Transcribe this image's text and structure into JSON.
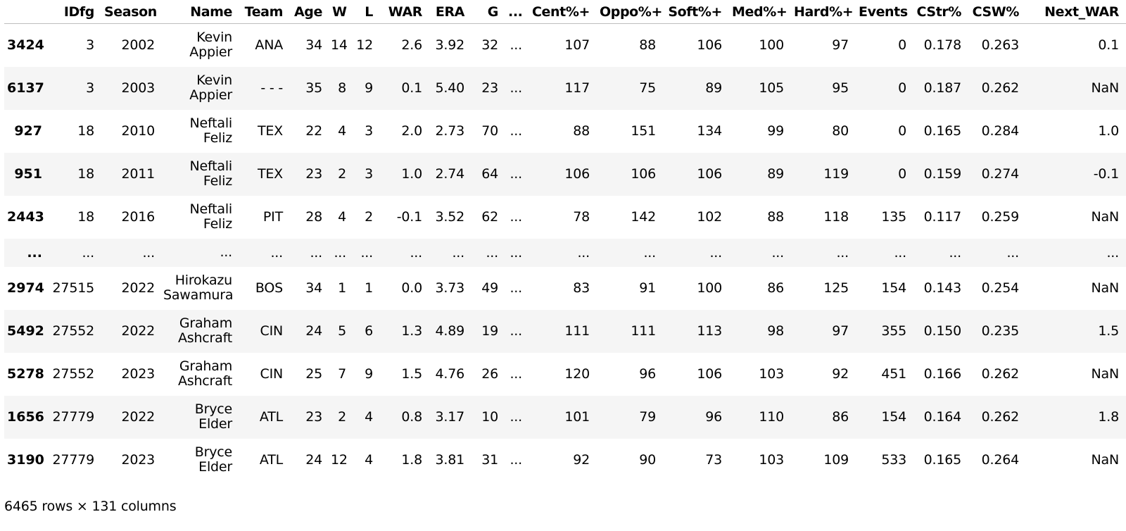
{
  "columns": [
    "",
    "IDfg",
    "Season",
    "Name",
    "Team",
    "Age",
    "W",
    "L",
    "WAR",
    "ERA",
    "G",
    "...",
    "Cent%+",
    "Oppo%+",
    "Soft%+",
    "Med%+",
    "Hard%+",
    "Events",
    "CStr%",
    "CSW%",
    "Next_WAR"
  ],
  "rows": [
    [
      "3424",
      "3",
      "2002",
      "Kevin Appier",
      "ANA",
      "34",
      "14",
      "12",
      "2.6",
      "3.92",
      "32",
      "...",
      "107",
      "88",
      "106",
      "100",
      "97",
      "0",
      "0.178",
      "0.263",
      "0.1"
    ],
    [
      "6137",
      "3",
      "2003",
      "Kevin Appier",
      "- - -",
      "35",
      "8",
      "9",
      "0.1",
      "5.40",
      "23",
      "...",
      "117",
      "75",
      "89",
      "105",
      "95",
      "0",
      "0.187",
      "0.262",
      "NaN"
    ],
    [
      "927",
      "18",
      "2010",
      "Neftali Feliz",
      "TEX",
      "22",
      "4",
      "3",
      "2.0",
      "2.73",
      "70",
      "...",
      "88",
      "151",
      "134",
      "99",
      "80",
      "0",
      "0.165",
      "0.284",
      "1.0"
    ],
    [
      "951",
      "18",
      "2011",
      "Neftali Feliz",
      "TEX",
      "23",
      "2",
      "3",
      "1.0",
      "2.74",
      "64",
      "...",
      "106",
      "106",
      "106",
      "89",
      "119",
      "0",
      "0.159",
      "0.274",
      "-0.1"
    ],
    [
      "2443",
      "18",
      "2016",
      "Neftali Feliz",
      "PIT",
      "28",
      "4",
      "2",
      "-0.1",
      "3.52",
      "62",
      "...",
      "78",
      "142",
      "102",
      "88",
      "118",
      "135",
      "0.117",
      "0.259",
      "NaN"
    ],
    [
      "...",
      "...",
      "...",
      "...",
      "...",
      "...",
      "...",
      "...",
      "...",
      "...",
      "...",
      "...",
      "...",
      "...",
      "...",
      "...",
      "...",
      "...",
      "...",
      "...",
      "..."
    ],
    [
      "2974",
      "27515",
      "2022",
      "Hirokazu Sawamura",
      "BOS",
      "34",
      "1",
      "1",
      "0.0",
      "3.73",
      "49",
      "...",
      "83",
      "91",
      "100",
      "86",
      "125",
      "154",
      "0.143",
      "0.254",
      "NaN"
    ],
    [
      "5492",
      "27552",
      "2022",
      "Graham Ashcraft",
      "CIN",
      "24",
      "5",
      "6",
      "1.3",
      "4.89",
      "19",
      "...",
      "111",
      "111",
      "113",
      "98",
      "97",
      "355",
      "0.150",
      "0.235",
      "1.5"
    ],
    [
      "5278",
      "27552",
      "2023",
      "Graham Ashcraft",
      "CIN",
      "25",
      "7",
      "9",
      "1.5",
      "4.76",
      "26",
      "...",
      "120",
      "96",
      "106",
      "103",
      "92",
      "451",
      "0.166",
      "0.262",
      "NaN"
    ],
    [
      "1656",
      "27779",
      "2022",
      "Bryce Elder",
      "ATL",
      "23",
      "2",
      "4",
      "0.8",
      "3.17",
      "10",
      "...",
      "101",
      "79",
      "96",
      "110",
      "86",
      "154",
      "0.164",
      "0.262",
      "1.8"
    ],
    [
      "3190",
      "27779",
      "2023",
      "Bryce Elder",
      "ATL",
      "24",
      "12",
      "4",
      "1.8",
      "3.81",
      "31",
      "...",
      "92",
      "90",
      "73",
      "103",
      "109",
      "533",
      "0.165",
      "0.264",
      "NaN"
    ]
  ],
  "footer": "6465 rows × 131 columns"
}
